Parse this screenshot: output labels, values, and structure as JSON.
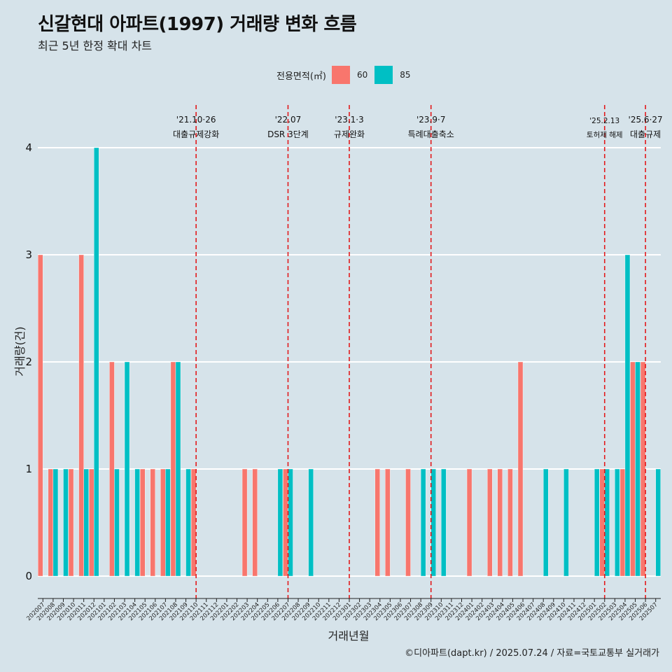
{
  "title": "신갈현대 아파트(1997) 거래량 변화 흐름",
  "subtitle": "최근 5년 한정 확대 차트",
  "caption": "©디아파트(dapt.kr) / 2025.07.24 / 자료=국토교통부 실거래가",
  "legend": {
    "title": "전용면적(㎡)",
    "items": [
      {
        "label": "60",
        "color": "#f8766d"
      },
      {
        "label": "85",
        "color": "#00bfc4"
      }
    ]
  },
  "chart_data": {
    "type": "bar",
    "xlabel": "거래년월",
    "ylabel": "거래량(건)",
    "ylim": [
      0,
      4
    ],
    "yticks": [
      0,
      1,
      2,
      3,
      4
    ],
    "grid": true,
    "legend_position": "top",
    "categories": [
      "202007",
      "202008",
      "202009",
      "202010",
      "202011",
      "202012",
      "202101",
      "202102",
      "202103",
      "202104",
      "202105",
      "202106",
      "202107",
      "202108",
      "202109",
      "202110",
      "202111",
      "202112",
      "202201",
      "202202",
      "202203",
      "202204",
      "202205",
      "202206",
      "202207",
      "202208",
      "202209",
      "202210",
      "202211",
      "202212",
      "202301",
      "202302",
      "202303",
      "202304",
      "202305",
      "202306",
      "202307",
      "202308",
      "202309",
      "202310",
      "202311",
      "202312",
      "202401",
      "202402",
      "202403",
      "202404",
      "202405",
      "202406",
      "202407",
      "202408",
      "202409",
      "202410",
      "202411",
      "202412",
      "202501",
      "202502",
      "202503",
      "202504",
      "202505",
      "202506",
      "202507"
    ],
    "series": [
      {
        "name": "60",
        "color": "#f8766d",
        "values": [
          3,
          1,
          0,
          1,
          3,
          1,
          0,
          2,
          0,
          0,
          1,
          1,
          1,
          2,
          0,
          1,
          0,
          0,
          0,
          0,
          1,
          1,
          0,
          0,
          1,
          0,
          0,
          0,
          0,
          0,
          0,
          0,
          0,
          1,
          1,
          0,
          1,
          0,
          0,
          0,
          0,
          0,
          1,
          0,
          1,
          1,
          1,
          2,
          0,
          0,
          0,
          0,
          0,
          0,
          0,
          1,
          0,
          1,
          2,
          2,
          0
        ]
      },
      {
        "name": "85",
        "color": "#00bfc4",
        "values": [
          0,
          1,
          1,
          0,
          1,
          4,
          0,
          1,
          2,
          1,
          0,
          0,
          1,
          2,
          1,
          0,
          0,
          0,
          0,
          0,
          0,
          0,
          0,
          1,
          1,
          0,
          1,
          0,
          0,
          0,
          0,
          0,
          0,
          0,
          0,
          0,
          0,
          1,
          1,
          1,
          0,
          0,
          0,
          0,
          0,
          0,
          0,
          0,
          0,
          1,
          0,
          1,
          0,
          0,
          1,
          1,
          1,
          3,
          2,
          0,
          1
        ]
      }
    ],
    "annotations": [
      {
        "category": "202110",
        "date": "'21.10·26",
        "label": "대출규제강화"
      },
      {
        "category": "202207",
        "date": "'22.07",
        "label": "DSR 3단계"
      },
      {
        "category": "202301",
        "date": "'23.1·3",
        "label": "규제완화"
      },
      {
        "category": "202309",
        "date": "'23.9·7",
        "label": "특례대출축소"
      },
      {
        "category": "202502",
        "date": "'25.2.13",
        "label": "토허제 해제"
      },
      {
        "category": "202506",
        "date": "'25.6·27",
        "label": "대출규제"
      }
    ],
    "reference_line_color": "#e31a1c"
  }
}
